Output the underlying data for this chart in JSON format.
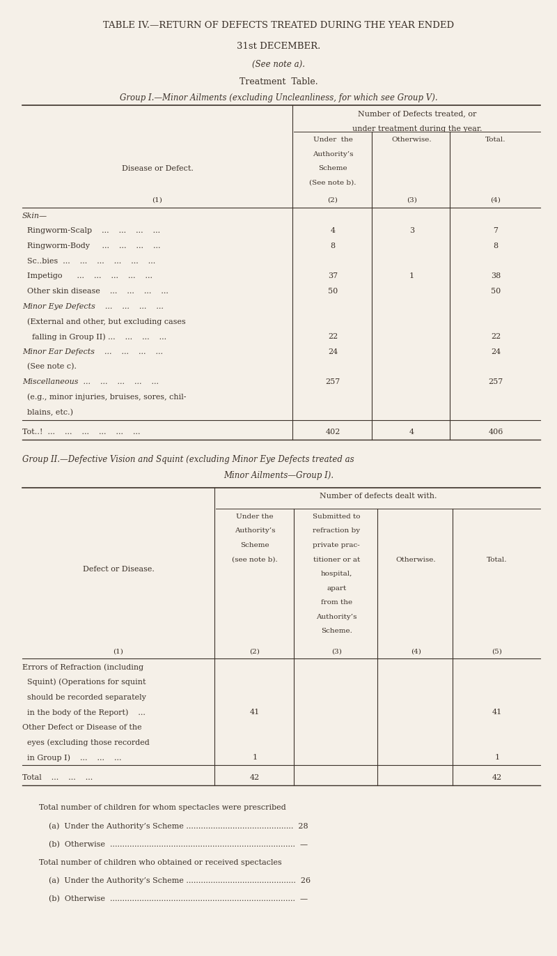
{
  "bg_color": "#f5f0e8",
  "text_color": "#3a3028",
  "title_lines": [
    "TABLE IV.—RETURN OF DEFECTS TREATED DURING THE YEAR ENDED",
    "31st DECEMBER.",
    "(See note a).",
    "Treatment  Table.",
    "Group I.—Minor Ailments (excluding Uncleanliness, for which see Group V)."
  ],
  "group1_rows": [
    {
      "label": "Skin—",
      "bold": true,
      "col2": "",
      "col3": "",
      "col4": ""
    },
    {
      "label": "  Ringworm-Scalp    ...    ...    ...    ...",
      "bold": false,
      "col2": "4",
      "col3": "3",
      "col4": "7"
    },
    {
      "label": "  Ringworm-Body     ...    ...    ...    ...",
      "bold": false,
      "col2": "8",
      "col3": "",
      "col4": "8"
    },
    {
      "label": "  Sc‥bies  ...    ...    ...    ...    ...    ...",
      "bold": false,
      "col2": "",
      "col3": "",
      "col4": ""
    },
    {
      "label": "  Impetigo      ...    ...    ...    ...    ...",
      "bold": false,
      "col2": "37",
      "col3": "1",
      "col4": "38"
    },
    {
      "label": "  Other skin disease    ...    ...    ...    ...",
      "bold": false,
      "col2": "50",
      "col3": "",
      "col4": "50"
    },
    {
      "label": "Minor Eye Defects    ...    ...    ...    ...",
      "bold": true,
      "col2": "",
      "col3": "",
      "col4": ""
    },
    {
      "label": "  (External and other, but excluding cases",
      "bold": false,
      "col2": "",
      "col3": "",
      "col4": ""
    },
    {
      "label": "    falling in Group II) ...    ...    ...    ...",
      "bold": false,
      "col2": "22",
      "col3": "",
      "col4": "22"
    },
    {
      "label": "Minor Ear Defects    ...    ...    ...    ...",
      "bold": true,
      "col2": "24",
      "col3": "",
      "col4": "24"
    },
    {
      "label": "  (See note c).",
      "bold": false,
      "col2": "",
      "col3": "",
      "col4": ""
    },
    {
      "label": "Miscellaneous  ...    ...    ...    ...    ...",
      "bold": true,
      "col2": "257",
      "col3": "",
      "col4": "257"
    },
    {
      "label": "  (e.g., minor injuries, bruises, sores, chil-",
      "bold": false,
      "col2": "",
      "col3": "",
      "col4": ""
    },
    {
      "label": "  blains, etc.)",
      "bold": false,
      "col2": "",
      "col3": "",
      "col4": ""
    },
    {
      "label": "Tot‥!  ...    ...    ...    ...    ...    ...",
      "bold": false,
      "total": true,
      "col2": "402",
      "col3": "4",
      "col4": "406"
    }
  ],
  "group2_title_line1": "Group II.—Defective Vision and Squint (excluding Minor Eye Defects treated as",
  "group2_title_line2": "Minor Ailments—Group I).",
  "group2_rows": [
    {
      "label": "Errors of Refraction (including",
      "bold": false,
      "col2": "",
      "col3": "",
      "col4": "",
      "col5": ""
    },
    {
      "label": "  Squint) (Operations for squint",
      "bold": false,
      "col2": "",
      "col3": "",
      "col4": "",
      "col5": ""
    },
    {
      "label": "  should be recorded separately",
      "bold": false,
      "col2": "",
      "col3": "",
      "col4": "",
      "col5": ""
    },
    {
      "label": "  in the body of the Report)    ...",
      "bold": false,
      "col2": "41",
      "col3": "",
      "col4": "",
      "col5": "41"
    },
    {
      "label": "Other Defect or Disease of the",
      "bold": false,
      "col2": "",
      "col3": "",
      "col4": "",
      "col5": ""
    },
    {
      "label": "  eyes (excluding those recorded",
      "bold": false,
      "col2": "",
      "col3": "",
      "col4": "",
      "col5": ""
    },
    {
      "label": "  in Group I)    ...    ...    ...",
      "bold": false,
      "col2": "1",
      "col3": "",
      "col4": "",
      "col5": "1"
    },
    {
      "label": "Total    ...    ...    ...",
      "bold": false,
      "total": true,
      "col2": "42",
      "col3": "",
      "col4": "",
      "col5": "42"
    }
  ],
  "footer_lines": [
    "Total number of children for whom spectacles were prescribed",
    "    (a)  Under the Authority’s Scheme ............................................  28",
    "    (b)  Otherwise  ............................................................................  —",
    "Total number of children who obtained or received spectacles",
    "    (a)  Under the Authority’s Scheme .............................................  26",
    "    (b)  Otherwise  ............................................................................  —"
  ]
}
